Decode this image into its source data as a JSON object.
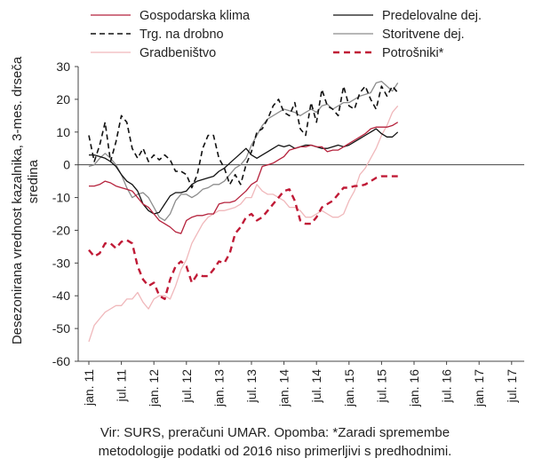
{
  "chart_data": {
    "type": "line",
    "ylabel_line1": "Desezonirana vrednost kazalnika, 3-mes. drseča",
    "ylabel_line2": "sredina",
    "ylim": [
      -60,
      30
    ],
    "yticks": [
      30,
      20,
      10,
      0,
      -10,
      -20,
      -30,
      -40,
      -50,
      -60
    ],
    "grid": false,
    "legend_position": "top",
    "xticklabels": [
      "jan. 11",
      "jul. 11",
      "jan. 12",
      "jul. 12",
      "jan. 13",
      "jul. 13",
      "jan. 14",
      "jul. 14",
      "jan. 15",
      "jul. 15",
      "jan. 16",
      "jul. 16",
      "jan. 17",
      "jul. 17"
    ],
    "series": [
      {
        "name": "Gospodarska klima",
        "color": "#b5223c",
        "dash": "solid",
        "width": 1.3,
        "values": [
          -6.5,
          -6.5,
          -6,
          -5,
          -5.5,
          -6.5,
          -7,
          -7.5,
          -8,
          -10,
          -12,
          -13,
          -15,
          -17,
          -18,
          -19,
          -20.5,
          -21,
          -17,
          -16,
          -15.5,
          -15.5,
          -15,
          -15,
          -12,
          -11.5,
          -11.5,
          -11,
          -9.5,
          -8,
          -6,
          -5,
          -0.5,
          0,
          0.5,
          1.5,
          2.5,
          4.5,
          5,
          5.5,
          5.5,
          6,
          5.5,
          5.5,
          4,
          4.5,
          4.5,
          5.5,
          6.5,
          7.5,
          8.5,
          9.5,
          11,
          11.5,
          11.5,
          11.5,
          12,
          13
        ]
      },
      {
        "name": "Trg. na drobno",
        "color": "#111111",
        "dash": "6,4",
        "width": 1.6,
        "values": [
          9,
          1,
          6,
          13,
          1,
          7,
          15,
          13,
          5,
          2,
          5,
          1,
          3,
          1.5,
          3,
          1.5,
          -2,
          -2,
          -3,
          -7,
          -3,
          5,
          9,
          9,
          2,
          -1,
          -6,
          -3,
          -6,
          0,
          4,
          10,
          11,
          14,
          18,
          20,
          16,
          15,
          19,
          11,
          9,
          19,
          13,
          23,
          18,
          17,
          15,
          24,
          18,
          17,
          22,
          24,
          20,
          17,
          24,
          21,
          24,
          22
        ]
      },
      {
        "name": "Gradbeništvo",
        "color": "#f0b8bb",
        "dash": "solid",
        "width": 1.3,
        "values": [
          -54,
          -49,
          -47,
          -45,
          -44,
          -43,
          -43,
          -41,
          -41,
          -39,
          -42,
          -44,
          -41,
          -40,
          -40,
          -41,
          -37,
          -32,
          -29,
          -24,
          -21,
          -18,
          -16,
          -15,
          -14,
          -14,
          -13.5,
          -13,
          -12,
          -10,
          -10,
          -6,
          -8,
          -9,
          -9,
          -10,
          -11,
          -13,
          -13,
          -14,
          -16,
          -16,
          -15,
          -14,
          -15,
          -16,
          -16,
          -15,
          -11,
          -8,
          -3,
          -1,
          2,
          5,
          9,
          12,
          16,
          18
        ]
      },
      {
        "name": "Predelovalne dej.",
        "color": "#111111",
        "dash": "solid",
        "width": 1.3,
        "values": [
          3,
          3,
          2.5,
          2,
          1,
          -0.5,
          -3,
          -5,
          -6,
          -8,
          -12,
          -14,
          -15,
          -14.5,
          -12,
          -9.5,
          -8.5,
          -8.5,
          -8,
          -6,
          -5,
          -4.5,
          -4,
          -3.5,
          -2,
          -1,
          0.5,
          2,
          3.5,
          5,
          3,
          2,
          3,
          4,
          5,
          6,
          5.5,
          6,
          5,
          5.5,
          6,
          6,
          5.5,
          5,
          5,
          5.5,
          6,
          5.5,
          6,
          7,
          8,
          9,
          10,
          11,
          9.5,
          8.5,
          8.5,
          10
        ]
      },
      {
        "name": "Storitvene dej.",
        "color": "#8c8c8c",
        "dash": "solid",
        "width": 1.3,
        "values": [
          -0.5,
          0,
          2,
          3.5,
          2,
          0,
          -3,
          -7,
          -10,
          -9,
          -8.5,
          -10,
          -13,
          -16,
          -17,
          -15,
          -11,
          -9,
          -9,
          -10,
          -9,
          -7.5,
          -7,
          -6,
          -6,
          -5,
          -3,
          -1,
          0,
          2,
          6,
          9,
          12,
          14,
          15,
          16,
          17,
          16.5,
          16,
          15,
          16,
          17,
          16,
          18,
          18.5,
          17,
          18,
          19,
          19,
          20,
          21,
          21.5,
          22,
          25,
          25.5,
          24,
          22.5,
          25
        ]
      },
      {
        "name": "Potrošniki*",
        "color": "#c01a36",
        "dash": "7,5",
        "width": 2.4,
        "values": [
          -26,
          -28,
          -27,
          -24,
          -24,
          -25.5,
          -23.5,
          -23,
          -24,
          -31,
          -35,
          -37,
          -36,
          -40,
          -41,
          -35,
          -31,
          -29.5,
          -31,
          -36,
          -33.5,
          -34,
          -34,
          -32,
          -29.5,
          -30,
          -27,
          -21,
          -19,
          -16,
          -15,
          -17,
          -16,
          -14,
          -12,
          -10,
          -8,
          -7.5,
          -11,
          -17,
          -18,
          -18,
          -16,
          -13,
          -12,
          -11,
          -9,
          -7,
          -7,
          -6.5,
          -6.5,
          -6,
          -5,
          -4,
          -3.5,
          -3.5,
          -3.5,
          -3.5
        ]
      }
    ]
  },
  "source_line1": "Vir: SURS, preračuni UMAR. Opomba: *Zaradi spremembe",
  "source_line2": "metodologije podatki od 2016 niso primerljivi s predhodnimi."
}
